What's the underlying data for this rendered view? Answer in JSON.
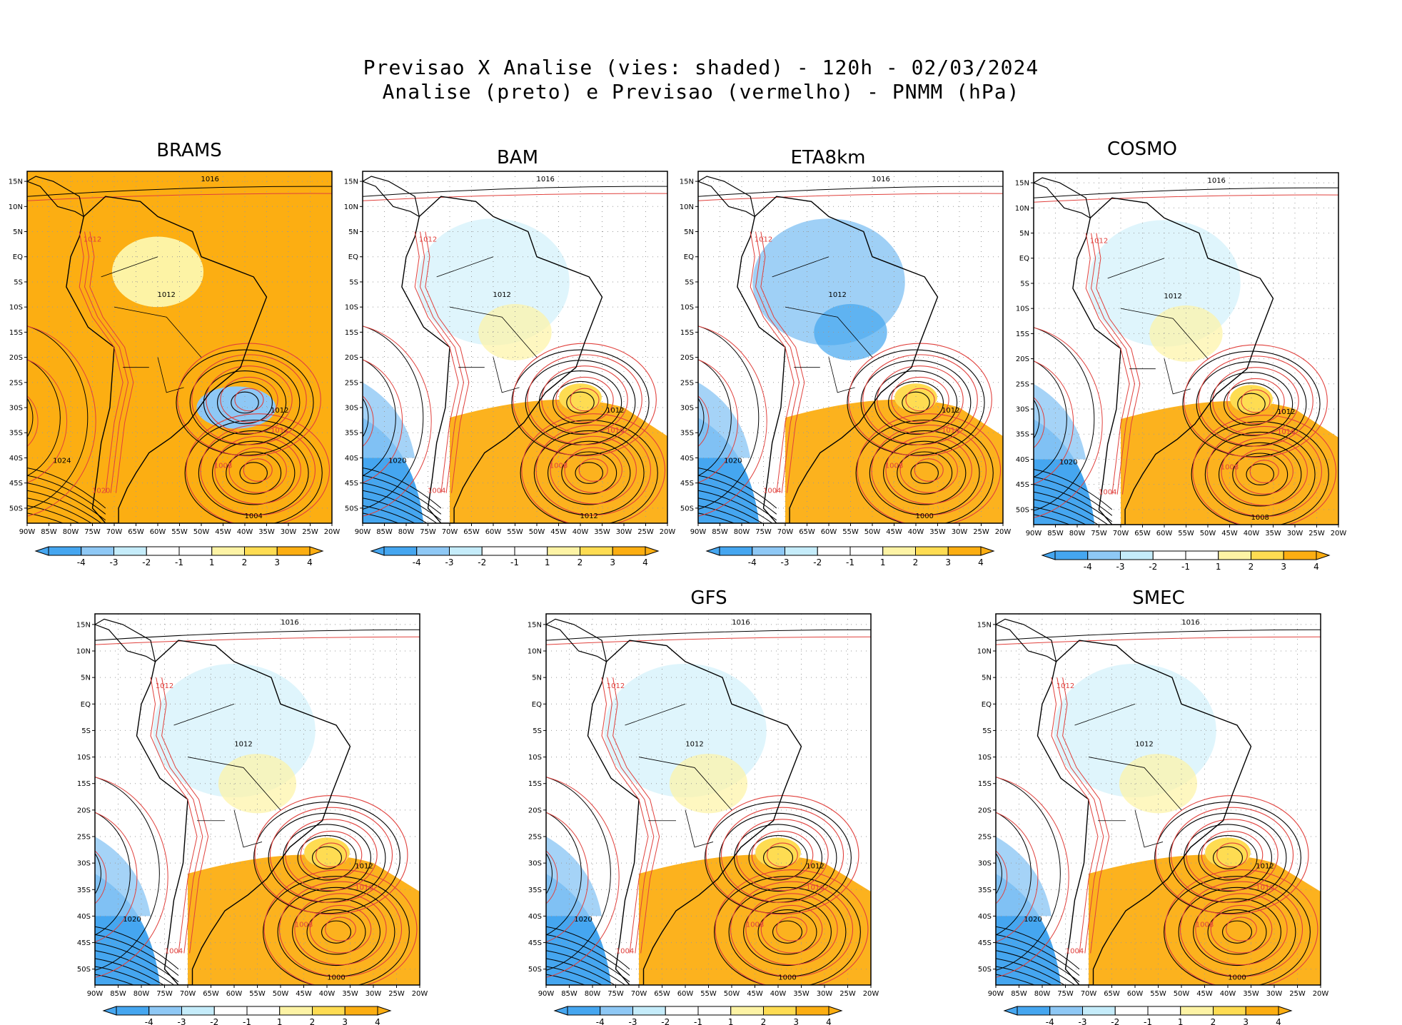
{
  "figure": {
    "title_line1": "Previsao X Analise (vies: shaded) - 120h - 02/03/2024",
    "title_line2": "Analise (preto) e Previsao (vermelho) - PNMM (hPa)"
  },
  "lat_ticks": [
    "15N",
    "10N",
    "5N",
    "EQ",
    "5S",
    "10S",
    "15S",
    "20S",
    "25S",
    "30S",
    "35S",
    "40S",
    "45S",
    "50S"
  ],
  "lon_ticks": [
    "90W",
    "85W",
    "80W",
    "75W",
    "70W",
    "65W",
    "60W",
    "55W",
    "50W",
    "45W",
    "40W",
    "35W",
    "30W",
    "25W",
    "20W"
  ],
  "colorbar": {
    "labels": [
      "-4",
      "-3",
      "-2",
      "-1",
      "1",
      "2",
      "3",
      "4"
    ],
    "colors": [
      "#45a6f0",
      "#8ec8f5",
      "#c5ecfa",
      "#ffffff",
      "#ffffff",
      "#fdf3a5",
      "#fedc52",
      "#fcae12"
    ]
  },
  "colors": {
    "analysis_contour": "#000000",
    "forecast_contour": "#e0403c",
    "positive_bias": "#fcae12",
    "negative_bias": "#45a6f0"
  },
  "panels": [
    {
      "name": "BRAMS",
      "bias": 0.85,
      "labels": [
        "1016",
        "1012",
        "1012",
        "1008",
        "1012",
        "1012",
        "1024",
        "1020",
        "1004"
      ]
    },
    {
      "name": "BAM",
      "bias": 0.3,
      "labels": [
        "1016",
        "1012",
        "1012",
        "1008",
        "1012",
        "1016",
        "1020",
        "1004",
        "1012"
      ]
    },
    {
      "name": "ETA8km",
      "bias": -0.3,
      "labels": [
        "1016",
        "1012",
        "1012",
        "1008",
        "1012",
        "1016",
        "1020",
        "1004",
        "1000"
      ]
    },
    {
      "name": "COSMO",
      "bias": 0.1,
      "labels": [
        "1016",
        "1012",
        "1012",
        "1008",
        "1012",
        "1016",
        "1020",
        "1004",
        "1008"
      ]
    },
    {
      "name": "",
      "bias": 0.15,
      "labels": [
        "1016",
        "1012",
        "1012",
        "1008",
        "1012",
        "1016",
        "1020",
        "1004",
        "1000"
      ]
    },
    {
      "name": "GFS",
      "bias": 0.1,
      "labels": [
        "1016",
        "1012",
        "1012",
        "1008",
        "1012",
        "1016",
        "1020",
        "1004",
        "1000"
      ]
    },
    {
      "name": "SMEC",
      "bias": 0.15,
      "labels": [
        "1016",
        "1012",
        "1012",
        "1008",
        "1012",
        "1016",
        "1020",
        "1004",
        "1000"
      ]
    }
  ]
}
